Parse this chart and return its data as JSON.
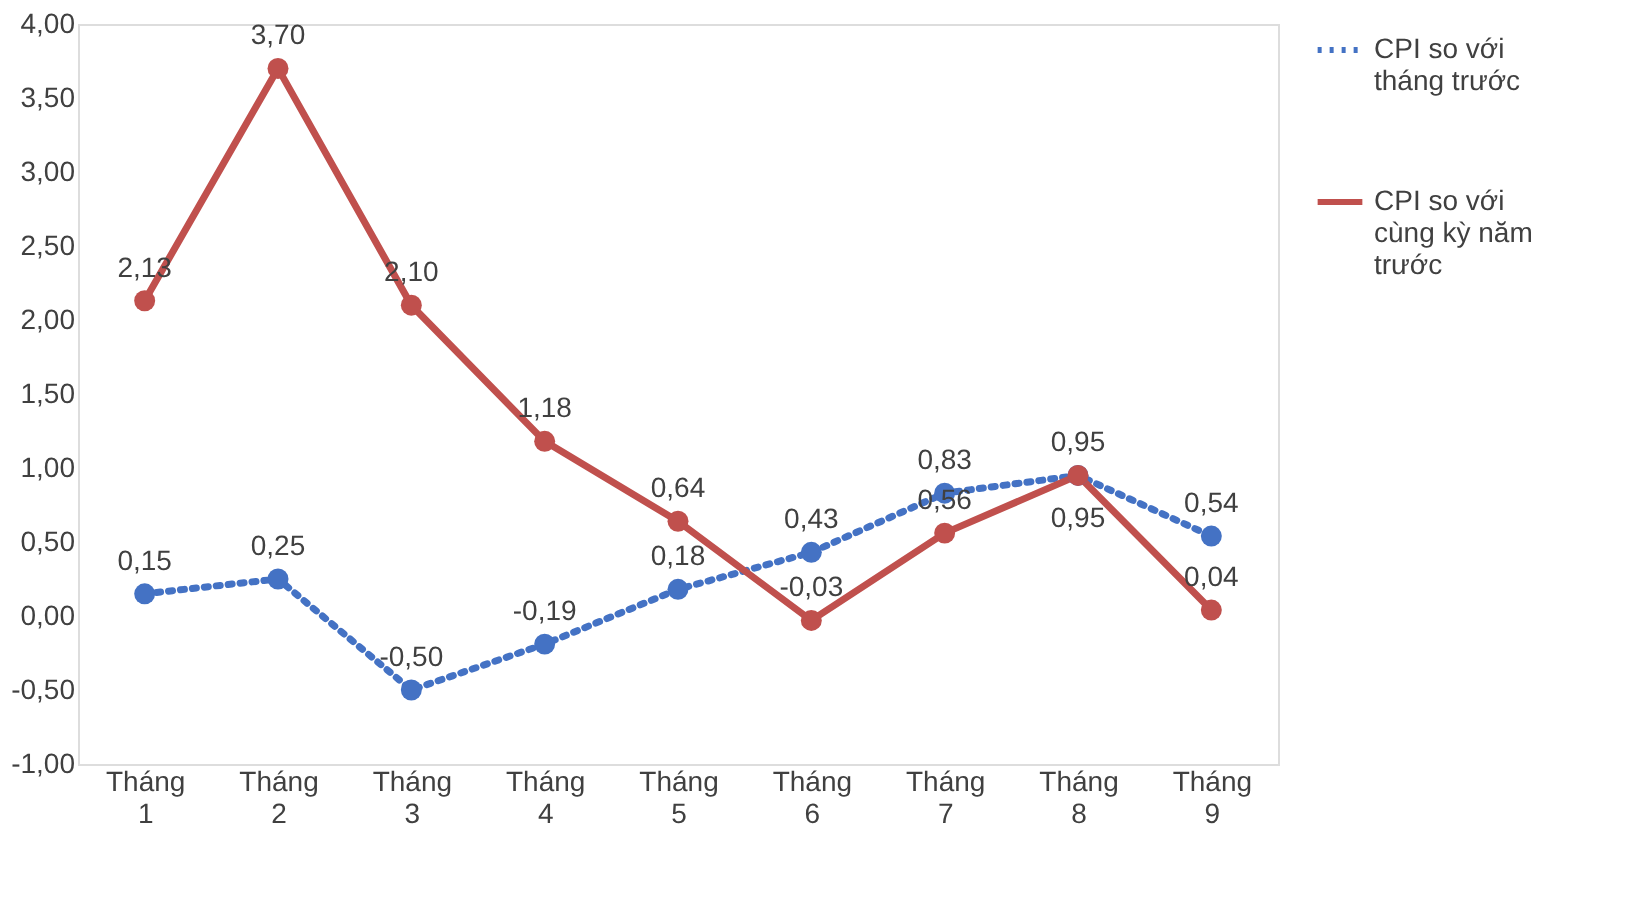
{
  "chart_data": {
    "type": "line",
    "categories": [
      "Tháng 1",
      "Tháng 2",
      "Tháng 3",
      "Tháng 4",
      "Tháng 5",
      "Tháng 6",
      "Tháng 7",
      "Tháng 8",
      "Tháng 9"
    ],
    "series": [
      {
        "name": "CPI so với tháng trước",
        "color": "#4472c4",
        "line_style": "dotted",
        "values": [
          0.15,
          0.25,
          -0.5,
          -0.19,
          0.18,
          0.43,
          0.83,
          0.95,
          0.54
        ],
        "value_labels": [
          "0,15",
          "0,25",
          "-0,50",
          "-0,19",
          "0,18",
          "0,43",
          "0,83",
          "0,95",
          "0,54"
        ]
      },
      {
        "name": "CPI so với cùng kỳ năm trước",
        "color": "#c0504d",
        "line_style": "solid",
        "values": [
          2.13,
          3.7,
          2.1,
          1.18,
          0.64,
          -0.03,
          0.56,
          0.95,
          0.04
        ],
        "value_labels": [
          "2,13",
          "3,70",
          "2,10",
          "1,18",
          "0,64",
          "-0,03",
          "0,56",
          "0,95",
          "0,04"
        ]
      }
    ],
    "ylim": [
      -1,
      4
    ],
    "yticks": [
      {
        "value": -1,
        "label": "-1,00"
      },
      {
        "value": -0.5,
        "label": "-0,50"
      },
      {
        "value": 0,
        "label": "0,00"
      },
      {
        "value": 0.5,
        "label": "0,50"
      },
      {
        "value": 1,
        "label": "1,00"
      },
      {
        "value": 1.5,
        "label": "1,50"
      },
      {
        "value": 2,
        "label": "2,00"
      },
      {
        "value": 2.5,
        "label": "2,50"
      },
      {
        "value": 3,
        "label": "3,00"
      },
      {
        "value": 3.5,
        "label": "3,50"
      },
      {
        "value": 4,
        "label": "4,00"
      }
    ],
    "marker": "circle",
    "legend": "right",
    "grid": false
  }
}
